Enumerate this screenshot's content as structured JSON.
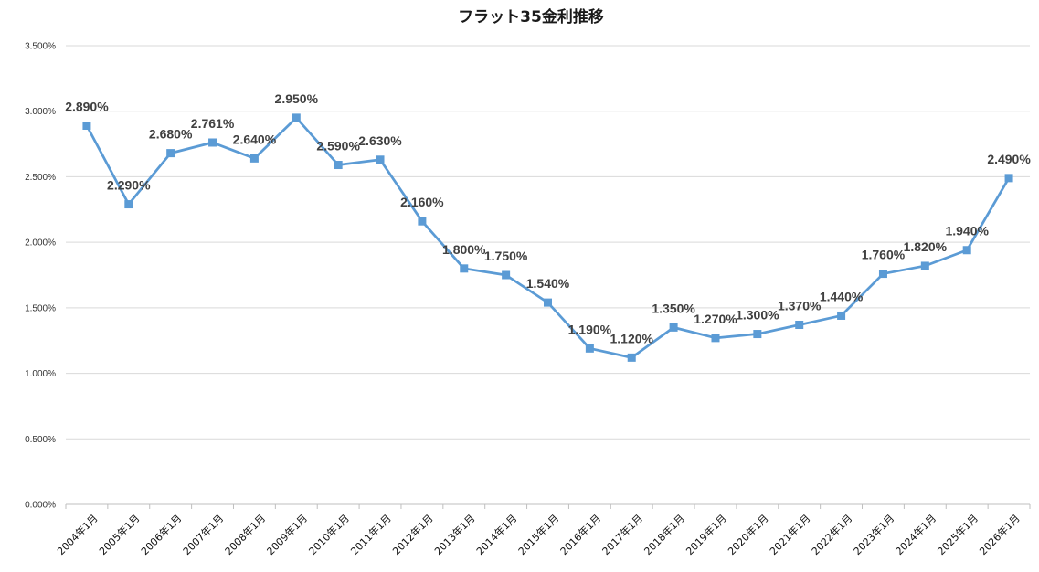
{
  "chart_data": {
    "type": "line",
    "title": "フラット35金利推移",
    "xlabel": "",
    "ylabel": "",
    "categories": [
      "2004年1月",
      "2005年1月",
      "2006年1月",
      "2007年1月",
      "2008年1月",
      "2009年1月",
      "2010年1月",
      "2011年1月",
      "2012年1月",
      "2013年1月",
      "2014年1月",
      "2015年1月",
      "2016年1月",
      "2017年1月",
      "2018年1月",
      "2019年1月",
      "2020年1月",
      "2021年1月",
      "2022年1月",
      "2023年1月",
      "2024年1月",
      "2025年1月",
      "2026年1月"
    ],
    "series": [
      {
        "values": [
          2.89,
          2.29,
          2.68,
          2.761,
          2.64,
          2.95,
          2.59,
          2.63,
          2.16,
          1.8,
          1.75,
          1.54,
          1.19,
          1.12,
          1.35,
          1.27,
          1.3,
          1.37,
          1.44,
          1.76,
          1.82,
          1.94,
          2.49
        ],
        "data_labels": [
          "2.890%",
          "2.290%",
          "2.680%",
          "2.761%",
          "2.640%",
          "2.950%",
          "2.590%",
          "2.630%",
          "2.160%",
          "1.800%",
          "1.750%",
          "1.540%",
          "1.190%",
          "1.120%",
          "1.350%",
          "1.270%",
          "1.300%",
          "1.370%",
          "1.440%",
          "1.760%",
          "1.820%",
          "1.940%",
          "2.490%"
        ],
        "color": "#5b9bd5",
        "marker": "square"
      }
    ],
    "ylim": [
      0,
      3.5
    ],
    "yticks": [
      0,
      0.5,
      1.0,
      1.5,
      2.0,
      2.5,
      3.0,
      3.5
    ],
    "ytick_labels": [
      "0.000%",
      "0.500%",
      "1.000%",
      "1.500%",
      "2.000%",
      "2.500%",
      "3.000%",
      "3.500%"
    ],
    "grid": true,
    "legend": "none"
  }
}
